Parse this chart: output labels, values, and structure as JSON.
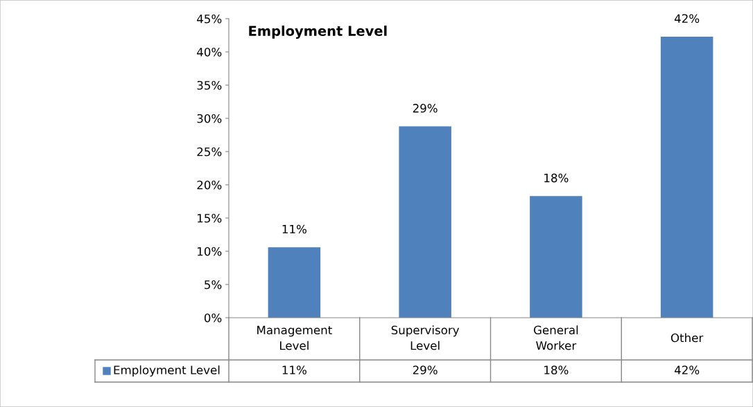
{
  "chart_data": {
    "type": "bar",
    "title": "Employment Level",
    "categories": [
      "Management Level",
      "Supervisory Level",
      "General Worker",
      "Other"
    ],
    "series": [
      {
        "name": "Employment Level",
        "color": "#4f81bd",
        "values": [
          10.6,
          28.8,
          18.3,
          42.3
        ],
        "value_labels": [
          "11%",
          "29%",
          "18%",
          "42%"
        ]
      }
    ],
    "ylim": [
      0,
      45
    ],
    "yticks": [
      {
        "value": 0,
        "label": "0%"
      },
      {
        "value": 5,
        "label": "5%"
      },
      {
        "value": 10,
        "label": "10%"
      },
      {
        "value": 15,
        "label": "15%"
      },
      {
        "value": 20,
        "label": "20%"
      },
      {
        "value": 25,
        "label": "25%"
      },
      {
        "value": 30,
        "label": "30%"
      },
      {
        "value": 35,
        "label": "35%"
      },
      {
        "value": 40,
        "label": "40%"
      },
      {
        "value": 45,
        "label": "45%"
      }
    ],
    "grid": false,
    "legend": "bottom"
  }
}
